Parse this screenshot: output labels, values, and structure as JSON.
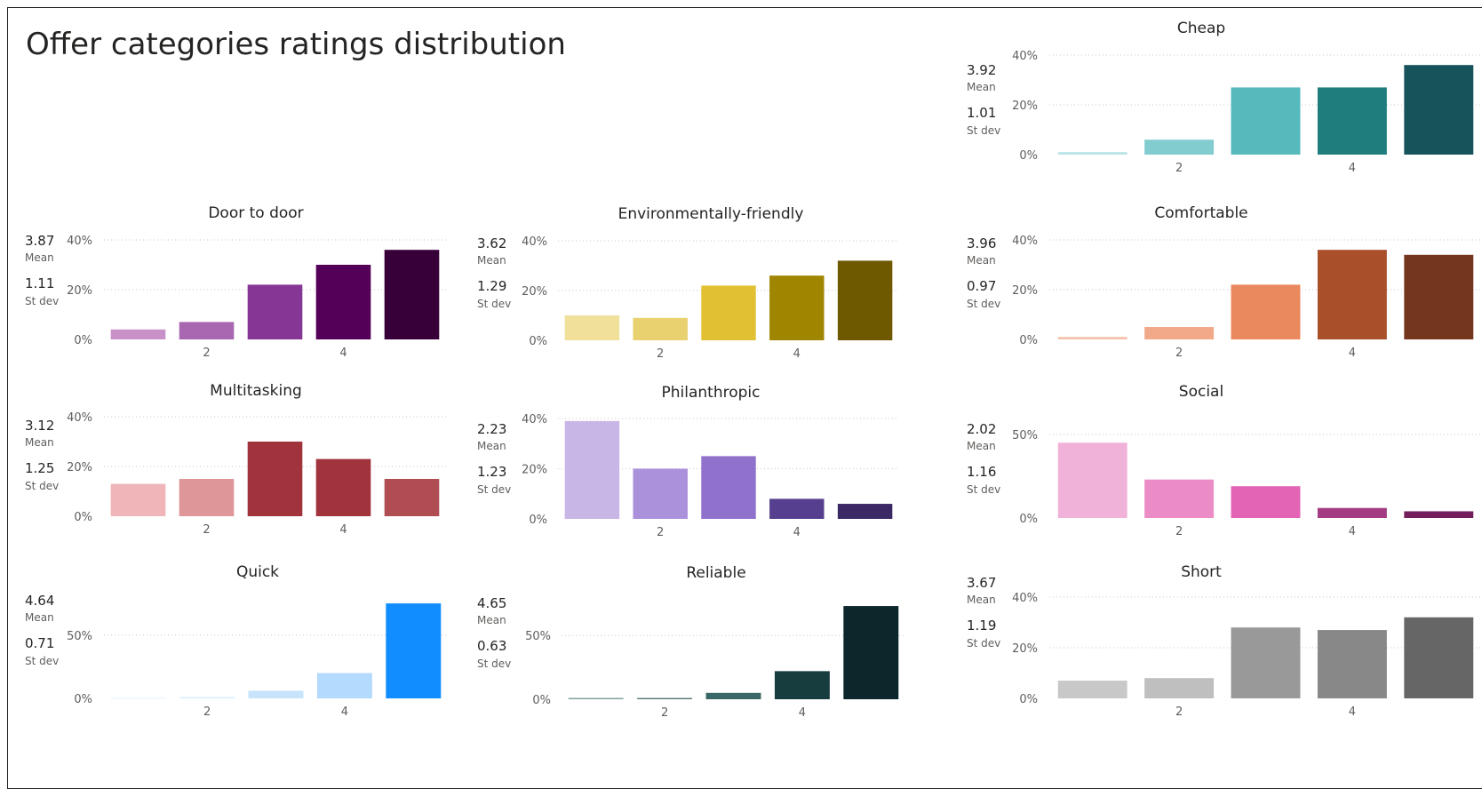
{
  "page_title": "Offer categories ratings distribution",
  "labels": {
    "mean": "Mean",
    "stdev": "St dev"
  },
  "chart_data": [
    {
      "id": "cheap",
      "type": "bar",
      "title": "Cheap",
      "mean": "3.92",
      "stdev": "1.01",
      "x": [
        1,
        2,
        3,
        4,
        5
      ],
      "xticks": [
        "2",
        "4"
      ],
      "values": [
        1,
        6,
        27,
        27,
        36
      ],
      "yticks": [
        "0%",
        "20%",
        "40%"
      ],
      "ylim": [
        0,
        40
      ],
      "grid": true,
      "colors": [
        "#b9e3e5",
        "#82ccd0",
        "#56b9bc",
        "#207d7d",
        "#17535a"
      ]
    },
    {
      "id": "door",
      "type": "bar",
      "title": "Door to door",
      "mean": "3.87",
      "stdev": "1.11",
      "x": [
        1,
        2,
        3,
        4,
        5
      ],
      "xticks": [
        "2",
        "4"
      ],
      "values": [
        4,
        7,
        22,
        30,
        36
      ],
      "yticks": [
        "0%",
        "20%",
        "40%"
      ],
      "ylim": [
        0,
        40
      ],
      "grid": true,
      "colors": [
        "#c892c8",
        "#a967b2",
        "#863695",
        "#550058",
        "#380038"
      ]
    },
    {
      "id": "env",
      "type": "bar",
      "title": "Environmentally-friendly",
      "mean": "3.62",
      "stdev": "1.29",
      "x": [
        1,
        2,
        3,
        4,
        5
      ],
      "xticks": [
        "2",
        "4"
      ],
      "values": [
        10,
        9,
        22,
        26,
        32
      ],
      "yticks": [
        "0%",
        "20%",
        "40%"
      ],
      "ylim": [
        0,
        40
      ],
      "grid": true,
      "colors": [
        "#f0e09a",
        "#e8d16e",
        "#e2c034",
        "#a08600",
        "#6e5900"
      ]
    },
    {
      "id": "comf",
      "type": "bar",
      "title": "Comfortable",
      "mean": "3.96",
      "stdev": "0.97",
      "x": [
        1,
        2,
        3,
        4,
        5
      ],
      "xticks": [
        "2",
        "4"
      ],
      "values": [
        1,
        5,
        22,
        36,
        34
      ],
      "yticks": [
        "0%",
        "20%",
        "40%"
      ],
      "ylim": [
        0,
        40
      ],
      "grid": true,
      "colors": [
        "#f4c3ad",
        "#f1a98a",
        "#ea895d",
        "#a94f2a",
        "#75361e"
      ]
    },
    {
      "id": "multi",
      "type": "bar",
      "title": "Multitasking",
      "mean": "3.12",
      "stdev": "1.25",
      "x": [
        1,
        2,
        3,
        4,
        5
      ],
      "xticks": [
        "2",
        "4"
      ],
      "values": [
        13,
        15,
        30,
        23,
        15
      ],
      "yticks": [
        "0%",
        "20%",
        "40%"
      ],
      "ylim": [
        0,
        40
      ],
      "grid": true,
      "colors": [
        "#efb5b8",
        "#df9699",
        "#a1333d",
        "#a1333d",
        "#b04d53"
      ]
    },
    {
      "id": "phil",
      "type": "bar",
      "title": "Philanthropic",
      "mean": "2.23",
      "stdev": "1.23",
      "x": [
        1,
        2,
        3,
        4,
        5
      ],
      "xticks": [
        "2",
        "4"
      ],
      "values": [
        39,
        20,
        25,
        8,
        6
      ],
      "yticks": [
        "0%",
        "20%",
        "40%"
      ],
      "ylim": [
        0,
        40
      ],
      "grid": true,
      "colors": [
        "#c8b6e6",
        "#ab90dc",
        "#9071cc",
        "#563f8e",
        "#3b2965"
      ]
    },
    {
      "id": "social",
      "type": "bar",
      "title": "Social",
      "mean": "2.02",
      "stdev": "1.16",
      "x": [
        1,
        2,
        3,
        4,
        5
      ],
      "xticks": [
        "2",
        "4"
      ],
      "values": [
        45,
        23,
        19,
        6,
        4
      ],
      "yticks": [
        "0%",
        "50%"
      ],
      "ylim": [
        0,
        60
      ],
      "grid": true,
      "colors": [
        "#f1b2d9",
        "#ec8cc6",
        "#e364b4",
        "#a43c83",
        "#721f5b"
      ]
    },
    {
      "id": "quick",
      "type": "bar",
      "title": "Quick",
      "mean": "4.64",
      "stdev": "0.71",
      "x": [
        1,
        2,
        3,
        4,
        5
      ],
      "xticks": [
        "2",
        "4"
      ],
      "values": [
        0.5,
        1,
        6,
        20,
        75
      ],
      "yticks": [
        "0%",
        "50%"
      ],
      "ylim": [
        0,
        80
      ],
      "grid": true,
      "colors": [
        "#e8f2fc",
        "#d9ebfc",
        "#c8e3fc",
        "#b4dafd",
        "#118dff"
      ]
    },
    {
      "id": "reliable",
      "type": "bar",
      "title": "Reliable",
      "mean": "4.65",
      "stdev": "0.63",
      "x": [
        1,
        2,
        3,
        4,
        5
      ],
      "xticks": [
        "2",
        "4"
      ],
      "values": [
        1,
        1,
        5,
        22,
        73
      ],
      "yticks": [
        "0%",
        "50%"
      ],
      "ylim": [
        0,
        80
      ],
      "grid": true,
      "colors": [
        "#7d9d9b",
        "#587a78",
        "#3a6767",
        "#183d3f",
        "#0b272b"
      ]
    },
    {
      "id": "short",
      "type": "bar",
      "title": "Short",
      "mean": "3.67",
      "stdev": "1.19",
      "x": [
        1,
        2,
        3,
        4,
        5
      ],
      "xticks": [
        "2",
        "4"
      ],
      "values": [
        7,
        8,
        28,
        27,
        32
      ],
      "yticks": [
        "0%",
        "20%",
        "40%"
      ],
      "ylim": [
        0,
        40
      ],
      "grid": true,
      "colors": [
        "#c8c8c8",
        "#bfbfbf",
        "#999999",
        "#888888",
        "#666666"
      ]
    }
  ]
}
